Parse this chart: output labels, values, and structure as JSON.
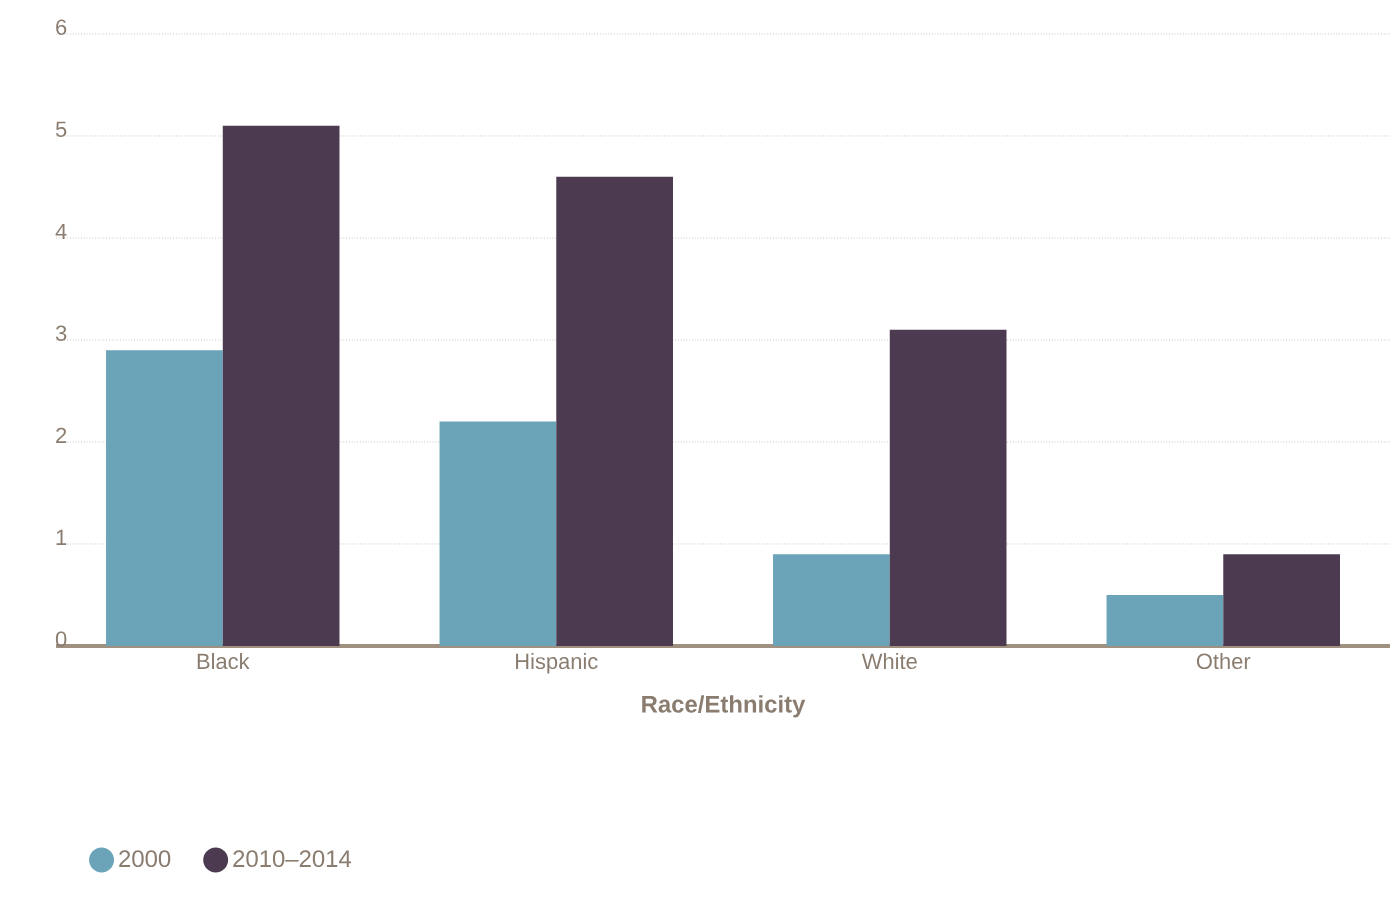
{
  "chart_data": {
    "type": "bar",
    "xlabel": "Race/Ethnicity",
    "categories": [
      "Black",
      "Hispanic",
      "White",
      "Other"
    ],
    "series": [
      {
        "name": "2000",
        "color": "#6ba3b8",
        "values": [
          2.9,
          2.2,
          0.9,
          0.5
        ]
      },
      {
        "name": "2010–2014",
        "color": "#4c3b50",
        "values": [
          5.1,
          4.6,
          3.1,
          0.9
        ]
      }
    ],
    "ylim": [
      0,
      6
    ],
    "yticks": [
      0,
      1,
      2,
      3,
      4,
      5,
      6
    ],
    "grid": "y",
    "legend": "bottom left"
  }
}
